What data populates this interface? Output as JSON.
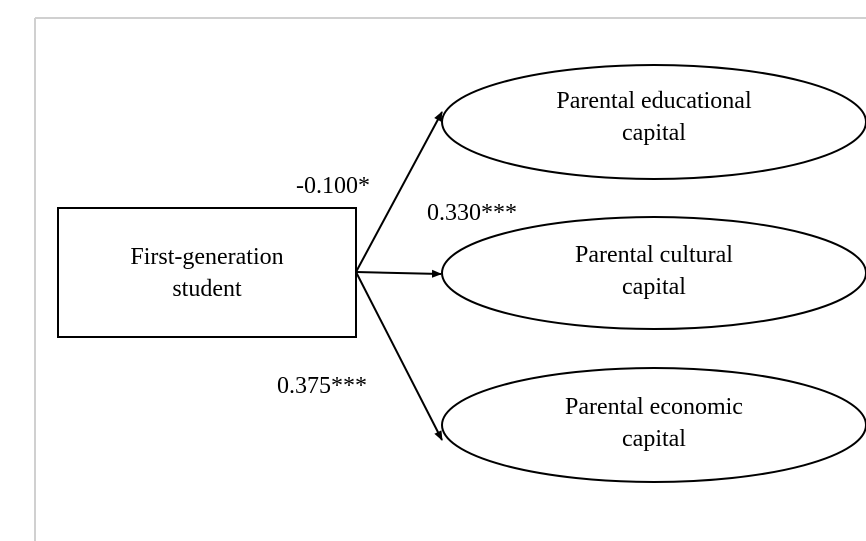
{
  "nodes": [
    {
      "label": [
        "First-generation",
        "student"
      ]
    },
    {
      "label": [
        "Parental educational",
        "capital"
      ]
    },
    {
      "label": [
        "Parental cultural",
        "capital"
      ]
    },
    {
      "label": [
        "Parental economic",
        "capital"
      ]
    }
  ],
  "edges": [
    {
      "label": "-0.100*"
    },
    {
      "label": "0.330***"
    },
    {
      "label": "0.375***"
    }
  ]
}
